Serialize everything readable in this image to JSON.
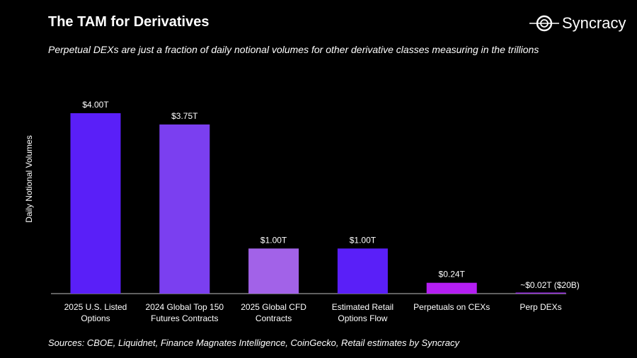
{
  "title": "The TAM for Derivatives",
  "subtitle": "Perpetual DEXs are just a fraction of daily notional volumes for other derivative classes measuring in the trillions",
  "logo": {
    "text": "Syncracy"
  },
  "sources": "Sources: CBOE, Liquidnet, Finance Magnates Intelligence, CoinGecko, Retail estimates by Syncracy",
  "chart_data": {
    "type": "bar",
    "title": "The TAM for Derivatives",
    "xlabel": "",
    "ylabel": "Daily Notional Volumes",
    "ylim": [
      0,
      4.0
    ],
    "unit": "trillion USD",
    "categories": [
      [
        "2025 U.S. Listed",
        "Options"
      ],
      [
        "2024 Global Top 150",
        "Futures Contracts"
      ],
      [
        "2025 Global CFD",
        "Contracts"
      ],
      [
        "Estimated Retail",
        "Options Flow"
      ],
      [
        "Perpetuals on CEXs"
      ],
      [
        "Perp DEXs"
      ]
    ],
    "values": [
      4.0,
      3.75,
      1.0,
      1.0,
      0.24,
      0.02
    ],
    "data_labels": [
      "$4.00T",
      "$3.75T",
      "$1.00T",
      "$1.00T",
      "$0.24T",
      "~$0.02T ($20B)"
    ],
    "colors": [
      "#5a1ff8",
      "#7b3ff0",
      "#a262e8",
      "#5a1ff8",
      "#b41ef2",
      "#9a2ee6"
    ],
    "grid": false
  }
}
